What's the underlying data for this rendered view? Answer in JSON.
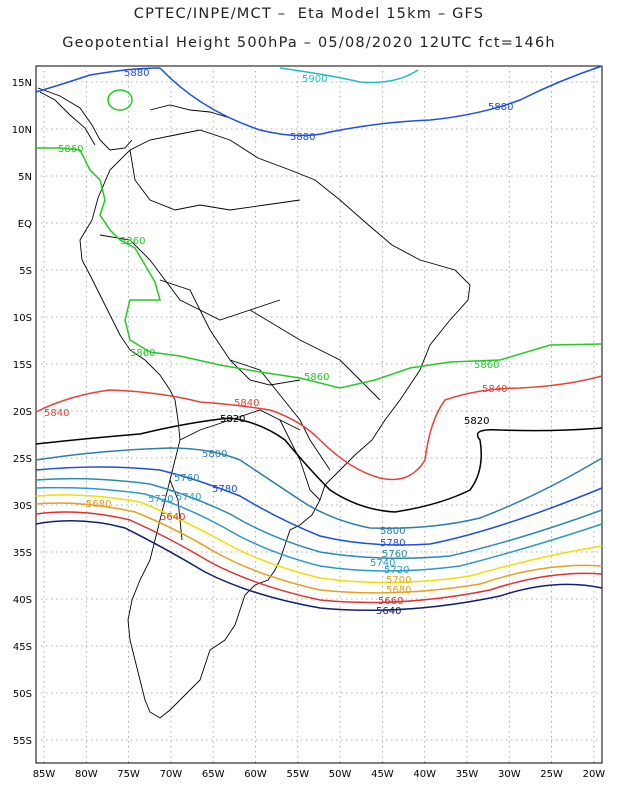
{
  "title": {
    "line1": "CPTEC/INPE/MCT –  Eta Model 15km – GFS",
    "line2": "Geopotential Height 500hPa – 05/08/2020 12UTC fct=146h"
  },
  "axes": {
    "lat_ticks": [
      "15N",
      "10N",
      "5N",
      "EQ",
      "5S",
      "10S",
      "15S",
      "20S",
      "25S",
      "30S",
      "35S",
      "40S",
      "45S",
      "50S",
      "55S"
    ],
    "lon_ticks": [
      "85W",
      "80W",
      "75W",
      "70W",
      "65W",
      "60W",
      "55W",
      "50W",
      "45W",
      "40W",
      "35W",
      "30W",
      "25W",
      "20W"
    ]
  },
  "contours": [
    {
      "value": "5900",
      "color": "#1fbfc0"
    },
    {
      "value": "5880",
      "color": "#1d4fe0"
    },
    {
      "value": "5860",
      "color": "#22cc22"
    },
    {
      "value": "5840",
      "color": "#e8403a"
    },
    {
      "value": "5820",
      "color": "#000000"
    },
    {
      "value": "5800",
      "color": "#2b7fa8"
    },
    {
      "value": "5780",
      "color": "#1d4fe0"
    },
    {
      "value": "5760",
      "color": "#2a8ab0"
    },
    {
      "value": "5740",
      "color": "#2a9ac8"
    },
    {
      "value": "5720",
      "color": "#f0e000"
    },
    {
      "value": "5700",
      "color": "#e8a020"
    },
    {
      "value": "5680",
      "color": "#e03030"
    },
    {
      "value": "5660",
      "color": "#102070"
    }
  ],
  "labels": {
    "c5900": "5900",
    "c5880": "5880",
    "c5860": "5860",
    "c5840": "5840",
    "c5820": "5820",
    "c5800": "5800",
    "c5780": "5780",
    "c5760": "5760",
    "c5740": "5740",
    "c5720": "5720",
    "c5700": "5700",
    "c5680": "5680",
    "c5660": "5660",
    "c5640": "5640"
  }
}
